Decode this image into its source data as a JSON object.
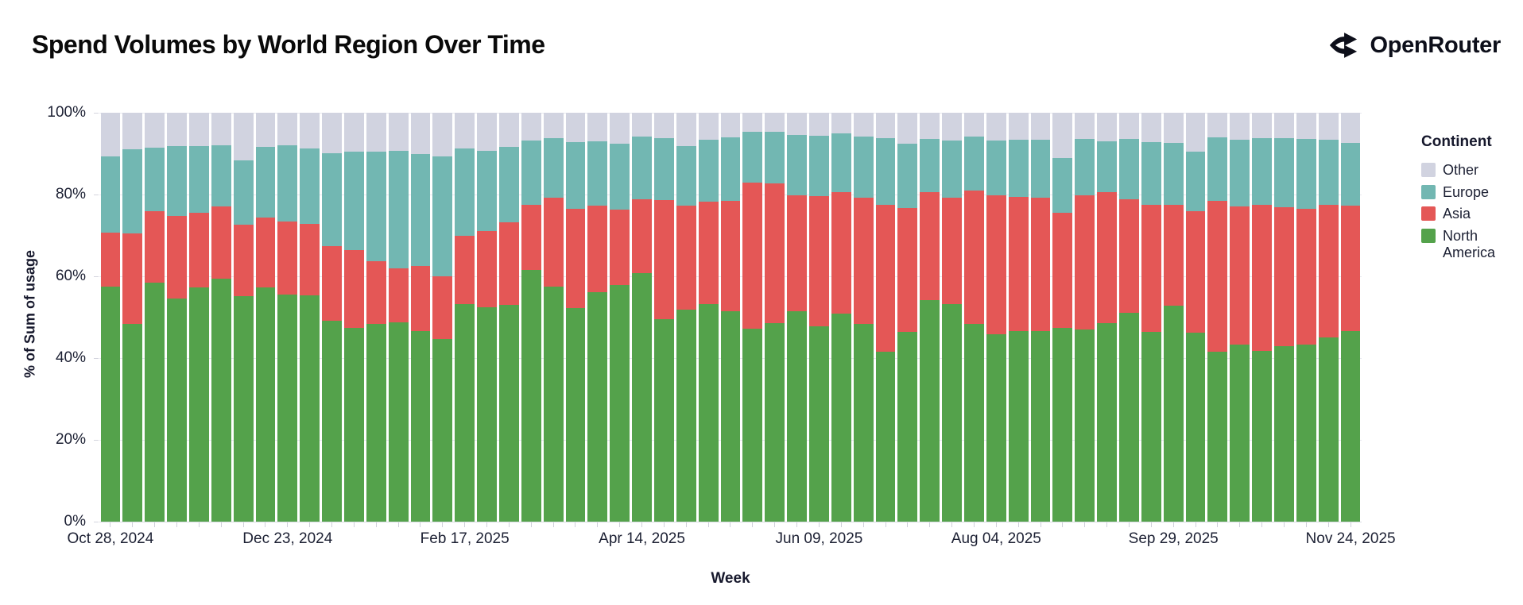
{
  "header": {
    "title": "Spend Volumes by World Region Over Time",
    "brand_name": "OpenRouter"
  },
  "legend": {
    "title": "Continent",
    "items": [
      {
        "label": "Other",
        "color": "#D1D3E0"
      },
      {
        "label": "Europe",
        "color": "#72B7B2"
      },
      {
        "label": "Asia",
        "color": "#E45756"
      },
      {
        "label": "North America",
        "color": "#54A24B"
      }
    ]
  },
  "axes": {
    "y_title": "% of Sum of usage",
    "x_title": "Week",
    "y_tick_labels": [
      "0%",
      "20%",
      "40%",
      "60%",
      "80%",
      "100%"
    ]
  },
  "chart_data": {
    "type": "bar",
    "variant": "stacked-100-percent",
    "title": "Spend Volumes by World Region Over Time",
    "xlabel": "Week",
    "ylabel": "% of Sum of usage",
    "ylim": [
      0,
      100
    ],
    "grid": true,
    "legend_position": "right",
    "legend_title": "Continent",
    "y_tick_percents": [
      0,
      20,
      40,
      60,
      80,
      100
    ],
    "labeled_tick_indices": [
      0,
      8,
      16,
      24,
      32,
      40,
      48,
      56
    ],
    "labeled_tick_labels": [
      "Oct 28, 2024",
      "Dec 23, 2024",
      "Feb 17, 2025",
      "Apr 14, 2025",
      "Jun 09, 2025",
      "Aug 04, 2025",
      "Sep 29, 2025",
      "Nov 24, 2025"
    ],
    "categories": [
      "Oct 28, 2024",
      "Nov 04, 2024",
      "Nov 11, 2024",
      "Nov 18, 2024",
      "Nov 25, 2024",
      "Dec 02, 2024",
      "Dec 09, 2024",
      "Dec 16, 2024",
      "Dec 23, 2024",
      "Dec 30, 2024",
      "Jan 06, 2025",
      "Jan 13, 2025",
      "Jan 20, 2025",
      "Jan 27, 2025",
      "Feb 03, 2025",
      "Feb 10, 2025",
      "Feb 17, 2025",
      "Feb 24, 2025",
      "Mar 03, 2025",
      "Mar 10, 2025",
      "Mar 17, 2025",
      "Mar 24, 2025",
      "Mar 31, 2025",
      "Apr 07, 2025",
      "Apr 14, 2025",
      "Apr 21, 2025",
      "Apr 28, 2025",
      "May 05, 2025",
      "May 12, 2025",
      "May 19, 2025",
      "May 26, 2025",
      "Jun 02, 2025",
      "Jun 09, 2025",
      "Jun 16, 2025",
      "Jun 23, 2025",
      "Jun 30, 2025",
      "Jul 07, 2025",
      "Jul 14, 2025",
      "Jul 21, 2025",
      "Jul 28, 2025",
      "Aug 04, 2025",
      "Aug 11, 2025",
      "Aug 18, 2025",
      "Aug 25, 2025",
      "Sep 01, 2025",
      "Sep 08, 2025",
      "Sep 15, 2025",
      "Sep 22, 2025",
      "Sep 29, 2025",
      "Oct 06, 2025",
      "Oct 13, 2025",
      "Oct 20, 2025",
      "Oct 27, 2025",
      "Nov 03, 2025",
      "Nov 10, 2025",
      "Nov 17, 2025",
      "Nov 24, 2025"
    ],
    "series": [
      {
        "name": "North America",
        "color": "#54A24B",
        "values": [
          57.4,
          48.3,
          58.5,
          54.6,
          57.2,
          59.4,
          55.1,
          57.3,
          55.6,
          55.4,
          49.2,
          47.4,
          48.3,
          48.7,
          46.7,
          44.7,
          53.3,
          52.4,
          53.1,
          61.5,
          57.4,
          52.2,
          56.1,
          57.8,
          60.8,
          49.6,
          51.9,
          53.3,
          51.4,
          47.2,
          48.6,
          51.5,
          47.8,
          50.8,
          48.4,
          41.5,
          46.4,
          54.2,
          53.3,
          48.4,
          45.8,
          46.7,
          46.7,
          47.4,
          46.9,
          48.5,
          51.0,
          46.5,
          52.8,
          46.2,
          41.5,
          43.4,
          41.7,
          42.9,
          43.3,
          45.1,
          46.6
        ]
      },
      {
        "name": "Asia",
        "color": "#E45756",
        "values": [
          13.2,
          22.2,
          17.5,
          20.1,
          18.3,
          17.6,
          17.5,
          17.1,
          17.8,
          17.4,
          18.2,
          19.1,
          15.3,
          13.3,
          15.8,
          15.4,
          16.7,
          18.6,
          20.1,
          16.0,
          21.8,
          24.3,
          21.1,
          18.5,
          18.0,
          29.0,
          25.3,
          24.9,
          27.1,
          35.7,
          34.1,
          28.4,
          31.9,
          29.8,
          30.8,
          35.9,
          30.3,
          26.4,
          26.0,
          32.5,
          34.1,
          32.8,
          32.5,
          28.1,
          33.0,
          32.0,
          27.8,
          30.9,
          24.6,
          29.8,
          37.0,
          33.6,
          35.7,
          34.0,
          33.2,
          32.4,
          30.6
        ]
      },
      {
        "name": "Europe",
        "color": "#72B7B2",
        "values": [
          18.7,
          20.5,
          15.5,
          17.2,
          16.3,
          15.0,
          15.7,
          17.2,
          18.7,
          18.4,
          22.8,
          23.9,
          26.8,
          28.6,
          27.4,
          29.3,
          21.3,
          19.7,
          18.5,
          15.7,
          14.5,
          16.4,
          15.9,
          16.2,
          15.4,
          15.1,
          14.7,
          15.2,
          15.4,
          12.5,
          12.7,
          14.7,
          14.7,
          14.3,
          15.0,
          16.3,
          15.7,
          13.0,
          13.9,
          13.3,
          13.3,
          13.9,
          14.2,
          13.5,
          13.7,
          12.6,
          14.8,
          15.5,
          15.3,
          14.4,
          15.5,
          16.4,
          16.4,
          16.8,
          17.1,
          15.9,
          15.4
        ]
      },
      {
        "name": "Other",
        "color": "#D1D3E0",
        "values": [
          10.7,
          9.0,
          8.5,
          8.1,
          8.2,
          8.0,
          11.7,
          8.4,
          7.9,
          8.8,
          9.8,
          9.6,
          9.6,
          9.4,
          10.1,
          10.6,
          8.7,
          9.3,
          8.3,
          6.8,
          6.3,
          7.1,
          6.9,
          7.5,
          5.8,
          6.3,
          8.1,
          6.6,
          6.1,
          4.6,
          4.6,
          5.4,
          5.6,
          5.1,
          5.8,
          6.3,
          7.6,
          6.4,
          6.8,
          5.8,
          6.8,
          6.6,
          6.6,
          11.0,
          6.4,
          6.9,
          6.4,
          7.1,
          7.3,
          9.6,
          6.0,
          6.6,
          6.2,
          6.3,
          6.4,
          6.6,
          7.4
        ]
      }
    ]
  }
}
